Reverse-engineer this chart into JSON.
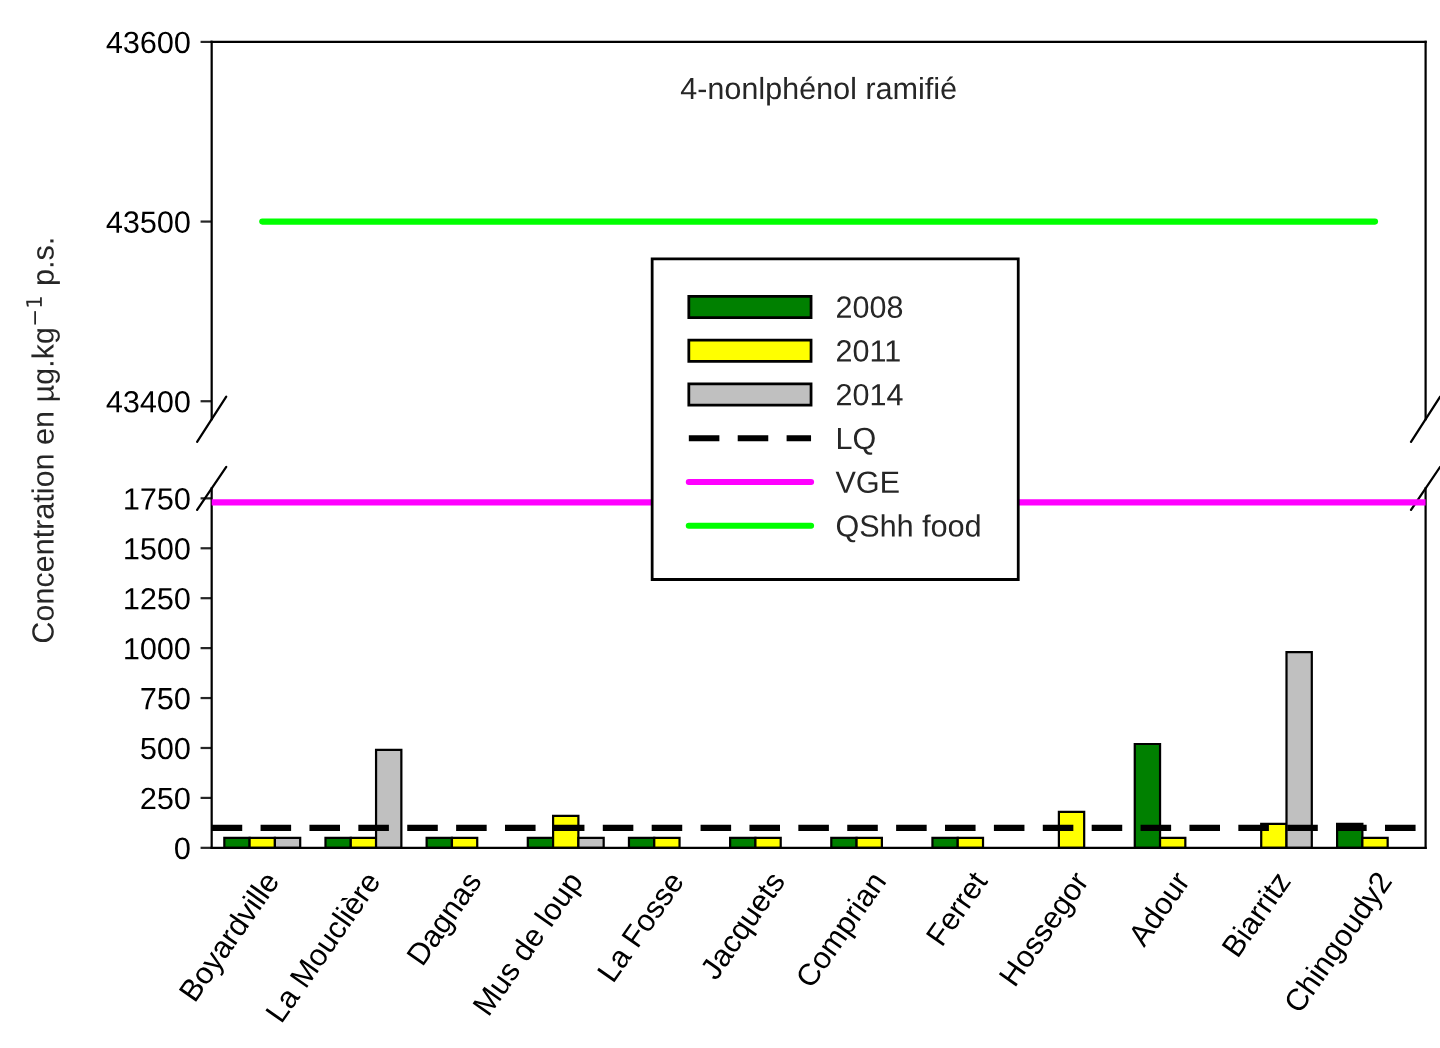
{
  "chart_data": [
    {
      "type": "line",
      "categories": [
        null,
        null,
        null,
        null,
        null,
        null,
        null,
        null,
        null,
        null,
        null,
        null
      ],
      "ylim": [
        43390,
        43600
      ],
      "yticks": [
        43400,
        43500,
        43600
      ],
      "tick_labels": "y",
      "marker": "none",
      "line_style": "solid",
      "series": [
        {
          "name": "QShh food",
          "color": "#00ff00",
          "values": [
            43500,
            43500,
            43500,
            43500,
            43500,
            43500,
            43500,
            43500,
            43500,
            43500,
            43500,
            43500
          ]
        }
      ],
      "annotations": [
        "4-nonlphénol ramifié"
      ]
    },
    {
      "type": "bar",
      "categories": [
        "Boyardville",
        "La Mouclière",
        "Dagnas",
        "Mus de loup",
        "La Fosse",
        "Jacquets",
        "Comprian",
        "Ferret",
        "Hossegor",
        "Adour",
        "Biarritz",
        "Chingoudy2"
      ],
      "ylabel": "Concentration en µg.kg$^{−1}$ p.s.",
      "ylim": [
        0,
        1800
      ],
      "yticks": [
        0,
        250,
        500,
        750,
        1000,
        1250,
        1500,
        1750
      ],
      "legend": "top",
      "series": [
        {
          "name": "2008",
          "color": "#008000",
          "values": [
            50,
            50,
            50,
            50,
            50,
            50,
            50,
            50,
            null,
            520,
            null,
            120
          ]
        },
        {
          "name": "2011",
          "color": "#ffff00",
          "values": [
            50,
            50,
            50,
            160,
            50,
            50,
            50,
            50,
            180,
            50,
            120,
            50
          ]
        },
        {
          "name": "2014",
          "color": "#c0c0c0",
          "values": [
            50,
            490,
            null,
            50,
            null,
            null,
            null,
            null,
            null,
            null,
            980,
            null
          ]
        }
      ],
      "ref_lines": [
        {
          "axis": "y",
          "value": 100,
          "label": "LQ",
          "color": "#000000",
          "line_style": "dashed"
        },
        {
          "axis": "y",
          "value": 1730,
          "label": "VGE",
          "color": "#ff00ff",
          "line_style": "solid"
        }
      ]
    }
  ]
}
